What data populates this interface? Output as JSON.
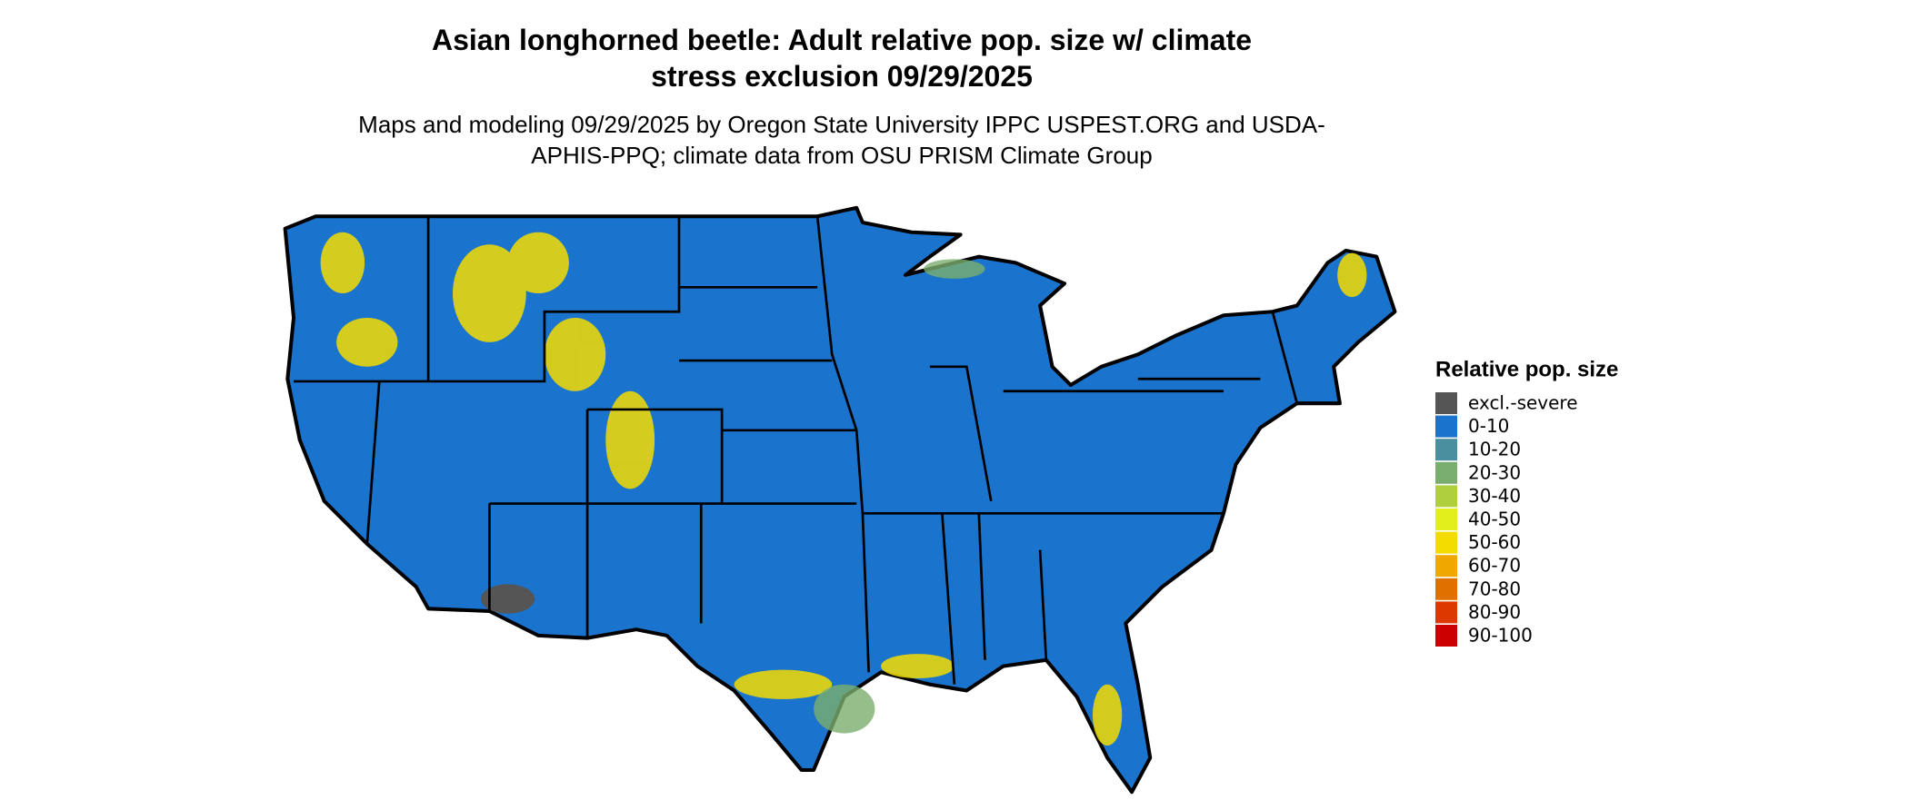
{
  "title": "Asian longhorned beetle: Adult relative pop. size w/ climate stress exclusion 09/29/2025",
  "subtitle": "Maps and modeling 09/29/2025 by Oregon State University IPPC USPEST.ORG and USDA-APHIS-PPQ; climate data from OSU PRISM Climate Group",
  "legend": {
    "title": "Relative pop. size",
    "items": [
      {
        "label": "excl.-severe",
        "color": "#555555"
      },
      {
        "label": "0-10",
        "color": "#1a73cc"
      },
      {
        "label": "10-20",
        "color": "#4a8fa0"
      },
      {
        "label": "20-30",
        "color": "#7aae6e"
      },
      {
        "label": "30-40",
        "color": "#b0cf3c"
      },
      {
        "label": "40-50",
        "color": "#e3ef1a"
      },
      {
        "label": "50-60",
        "color": "#f5dc00"
      },
      {
        "label": "60-70",
        "color": "#f0a800"
      },
      {
        "label": "70-80",
        "color": "#e07000"
      },
      {
        "label": "80-90",
        "color": "#dd3800"
      },
      {
        "label": "90-100",
        "color": "#cc0000"
      }
    ]
  }
}
